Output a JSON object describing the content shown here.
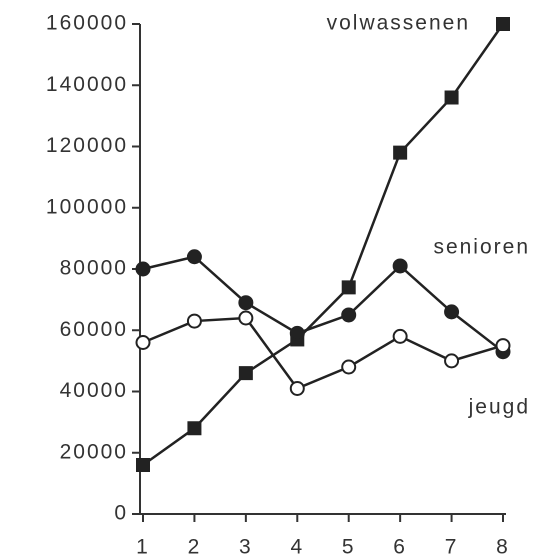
{
  "chart_data": {
    "type": "line",
    "x": [
      1,
      2,
      3,
      4,
      5,
      6,
      7,
      8
    ],
    "xlim": [
      1,
      8
    ],
    "xticks": [
      1,
      2,
      3,
      4,
      5,
      6,
      7,
      8
    ],
    "ylim": [
      0,
      160000
    ],
    "yticks": [
      0,
      20000,
      40000,
      60000,
      80000,
      100000,
      120000,
      140000,
      160000
    ],
    "grid": false,
    "series": [
      {
        "name": "volwassenen",
        "color": "#222222",
        "marker": "square",
        "values": [
          16000,
          28000,
          46000,
          57000,
          74000,
          118000,
          136000,
          160000
        ]
      },
      {
        "name": "senioren",
        "color": "#222222",
        "marker": "circle-filled",
        "values": [
          80000,
          84000,
          69000,
          59000,
          65000,
          81000,
          66000,
          53000
        ]
      },
      {
        "name": "jeugd",
        "color": "#222222",
        "marker": "circle-open",
        "values": [
          56000,
          63000,
          64000,
          41000,
          48000,
          58000,
          50000,
          55000
        ]
      }
    ]
  }
}
